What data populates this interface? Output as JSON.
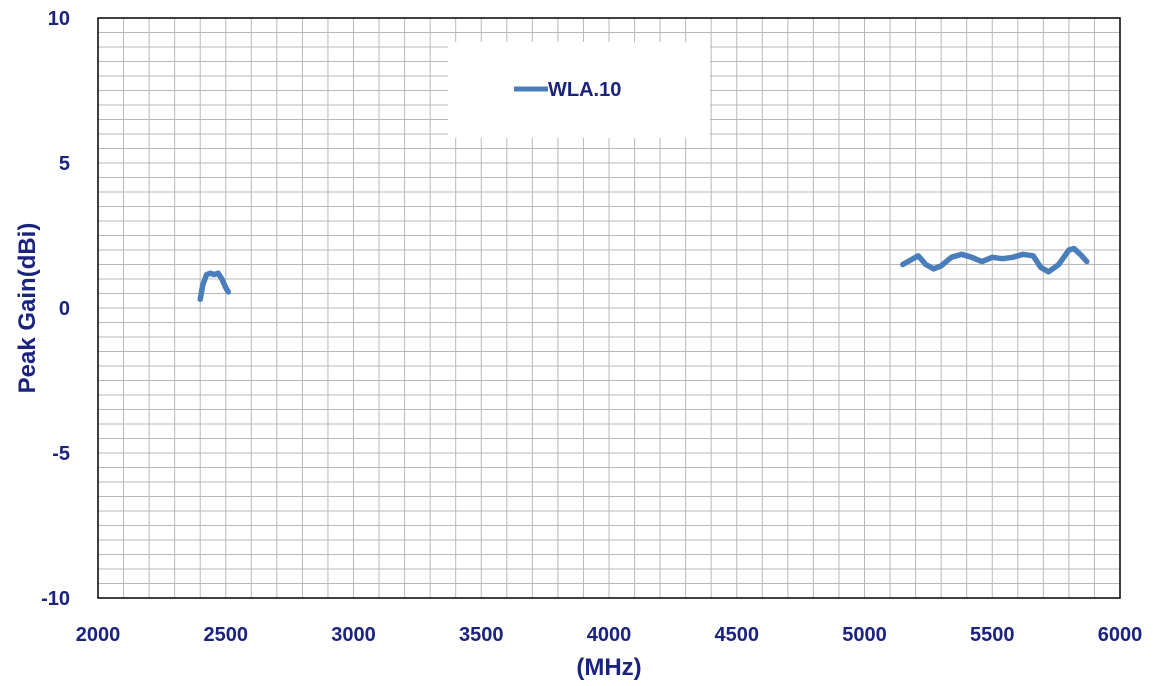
{
  "chart_data": {
    "type": "line",
    "xlabel": "(MHz)",
    "ylabel": "Peak Gain(dBi)",
    "xlim": [
      2000,
      6000
    ],
    "ylim": [
      -10,
      10
    ],
    "x_ticks": [
      2000,
      2500,
      3000,
      3500,
      4000,
      4500,
      5000,
      5500,
      6000
    ],
    "y_ticks": [
      10,
      5,
      0,
      -5,
      -10
    ],
    "x_tick_labels": [
      "2000",
      "2500",
      "3000",
      "3500",
      "4000",
      "4500",
      "5000",
      "5500",
      "6000"
    ],
    "y_tick_labels": [
      "10",
      "5",
      "0",
      "-5",
      "-10"
    ],
    "grid": true,
    "legend_position": "top-center",
    "series": [
      {
        "name": "WLA.10",
        "color": "#4a7ebb",
        "segments": [
          [
            [
              2400,
              0.3
            ],
            [
              2410,
              0.8
            ],
            [
              2425,
              1.15
            ],
            [
              2440,
              1.2
            ],
            [
              2455,
              1.15
            ],
            [
              2470,
              1.2
            ],
            [
              2485,
              1.0
            ],
            [
              2500,
              0.7
            ],
            [
              2510,
              0.55
            ]
          ],
          [
            [
              5150,
              1.5
            ],
            [
              5180,
              1.65
            ],
            [
              5210,
              1.8
            ],
            [
              5240,
              1.5
            ],
            [
              5270,
              1.35
            ],
            [
              5300,
              1.45
            ],
            [
              5340,
              1.75
            ],
            [
              5380,
              1.85
            ],
            [
              5420,
              1.75
            ],
            [
              5460,
              1.6
            ],
            [
              5500,
              1.75
            ],
            [
              5540,
              1.7
            ],
            [
              5580,
              1.75
            ],
            [
              5620,
              1.85
            ],
            [
              5660,
              1.8
            ],
            [
              5690,
              1.4
            ],
            [
              5720,
              1.25
            ],
            [
              5760,
              1.5
            ],
            [
              5800,
              2.0
            ],
            [
              5820,
              2.05
            ],
            [
              5850,
              1.8
            ],
            [
              5870,
              1.6
            ]
          ]
        ]
      }
    ]
  }
}
